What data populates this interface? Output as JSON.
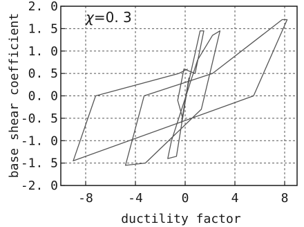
{
  "chart_data": {
    "type": "line",
    "title": "",
    "xlabel": "ductility factor",
    "ylabel": "base shear coefficient",
    "xlim": [
      -10,
      9
    ],
    "ylim": [
      -2.0,
      2.0
    ],
    "x_ticks": [
      -8,
      -4,
      0,
      4,
      8
    ],
    "x_tick_labels": [
      "-8",
      "-4",
      "0",
      "4",
      "8"
    ],
    "y_ticks": [
      2.0,
      1.5,
      1.0,
      0.5,
      0.0,
      -0.5,
      -1.0,
      -1.5,
      -2.0
    ],
    "y_tick_labels": [
      "2. 0",
      "1. 5",
      "1. 0",
      "0. 5",
      "0. 0",
      "-0. 5",
      "-1. 0",
      "-1. 5",
      "-2. 0"
    ],
    "grid": true,
    "grid_style": "dashed",
    "annotation": {
      "symbol": "χ",
      "text": "=0. 3"
    },
    "colors": {
      "line": "#555555",
      "axis": "#1a1a1a",
      "grid": "#555555",
      "background": "#ffffff"
    },
    "series": [
      {
        "points": [
          [
            -0.3,
            -0.6
          ],
          [
            0.3,
            0.4
          ],
          [
            -0.2,
            -0.5
          ],
          [
            -0.6,
            -0.1
          ],
          [
            -0.1,
            0.6
          ],
          [
            0.8,
            0.5
          ],
          [
            1.5,
            1.45
          ],
          [
            1.2,
            1.45
          ],
          [
            0.2,
            0.2
          ],
          [
            -0.7,
            -1.35
          ],
          [
            -1.4,
            -1.4
          ],
          [
            -1.1,
            -1.0
          ],
          [
            1.0,
            0.8
          ],
          [
            2.2,
            1.35
          ],
          [
            2.8,
            1.45
          ],
          [
            1.3,
            -0.3
          ],
          [
            -3.2,
            -1.5
          ],
          [
            -4.8,
            -1.55
          ],
          [
            -3.3,
            0.0
          ],
          [
            2.2,
            0.5
          ],
          [
            7.8,
            1.7
          ],
          [
            8.2,
            1.7
          ],
          [
            5.5,
            0.0
          ],
          [
            -9.0,
            -1.45
          ],
          [
            -7.2,
            0.0
          ],
          [
            -0.5,
            0.5
          ],
          [
            0.2,
            0.6
          ]
        ]
      }
    ]
  }
}
